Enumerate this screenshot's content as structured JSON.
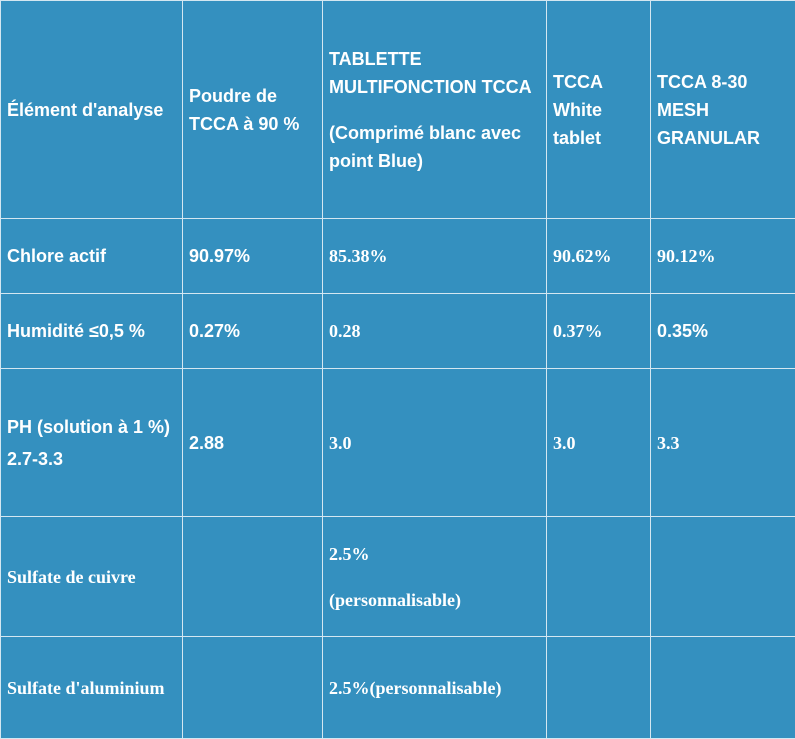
{
  "table": {
    "header": {
      "element": "Élément d'analyse",
      "powder": "Poudre de TCCA à 90 %",
      "multi_title": "TABLETTE MULTIFONCTION TCCA",
      "multi_sub": "(Comprimé blanc avec point Blue)",
      "white": "TCCA White tablet",
      "granular": "TCCA 8-30 MESH GRANULAR"
    },
    "rows": [
      {
        "label": "Chlore actif",
        "powder": "90.97%",
        "multi": "85.38%",
        "white": "90.62%",
        "granular": "90.12%"
      },
      {
        "label": "Humidité ≤0,5 %",
        "powder": "0.27%",
        "multi": "0.28",
        "white": "0.37%",
        "granular": "0.35%"
      },
      {
        "label": "PH (solution à 1 %)",
        "label_sub": "2.7-3.3",
        "powder": "2.88",
        "multi": "3.0",
        "white": "3.0",
        "granular": "3.3"
      },
      {
        "label": "Sulfate de cuivre",
        "multi": "2.5%",
        "multi_sub": "(personnalisable)"
      },
      {
        "label": "Sulfate d'aluminium",
        "multi": "2.5%(personnalisable)"
      }
    ]
  }
}
